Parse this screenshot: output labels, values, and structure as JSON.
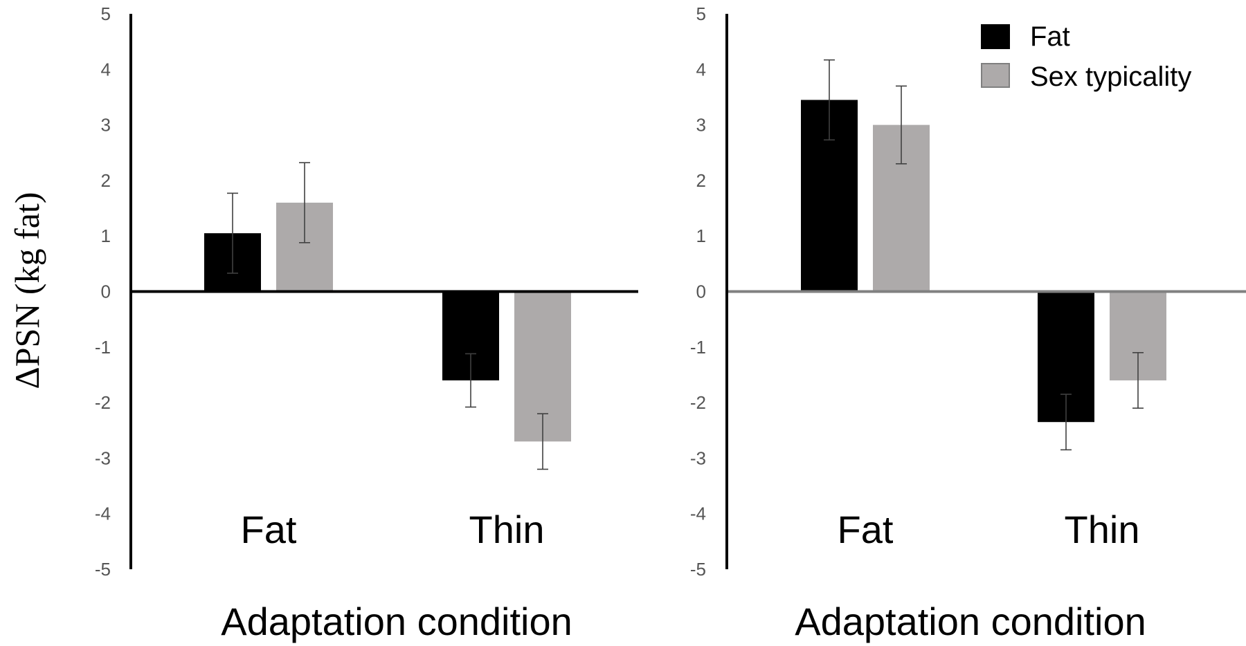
{
  "figure": {
    "ylabel": "ΔPSN (kg fat)"
  },
  "legend": {
    "entries": [
      {
        "label": "Fat",
        "color": "#000000",
        "stroke": "#000000"
      },
      {
        "label": "Sex typicality",
        "color": "#adaaaa",
        "stroke": "#7f7f7f"
      }
    ]
  },
  "chart_data": [
    {
      "type": "bar",
      "title": "",
      "xlabel": "Adaptation condition",
      "ylabel": "ΔPSN (kg fat)",
      "categories": [
        "Fat",
        "Thin"
      ],
      "ylim": [
        -5,
        5
      ],
      "yticks": [
        5,
        4,
        3,
        2,
        1,
        0,
        -1,
        -2,
        -3,
        -4,
        -5
      ],
      "zero_line_color": "#000000",
      "series": [
        {
          "name": "Fat",
          "color": "#000000",
          "values": [
            1.05,
            -1.6
          ],
          "error": [
            0.72,
            0.48
          ]
        },
        {
          "name": "Sex typicality",
          "color": "#adaaaa",
          "values": [
            1.6,
            -2.7
          ],
          "error": [
            0.72,
            0.5
          ]
        }
      ]
    },
    {
      "type": "bar",
      "title": "",
      "xlabel": "Adaptation condition",
      "ylabel": "",
      "categories": [
        "Fat",
        "Thin"
      ],
      "ylim": [
        -5,
        5
      ],
      "yticks": [
        5,
        4,
        3,
        2,
        1,
        0,
        -1,
        -2,
        -3,
        -4,
        -5
      ],
      "zero_line_color": "#808080",
      "series": [
        {
          "name": "Fat",
          "color": "#000000",
          "values": [
            3.45,
            -2.35
          ],
          "error": [
            0.72,
            0.5
          ]
        },
        {
          "name": "Sex typicality",
          "color": "#adaaaa",
          "values": [
            3.0,
            -1.6
          ],
          "error": [
            0.7,
            0.5
          ]
        }
      ]
    }
  ]
}
